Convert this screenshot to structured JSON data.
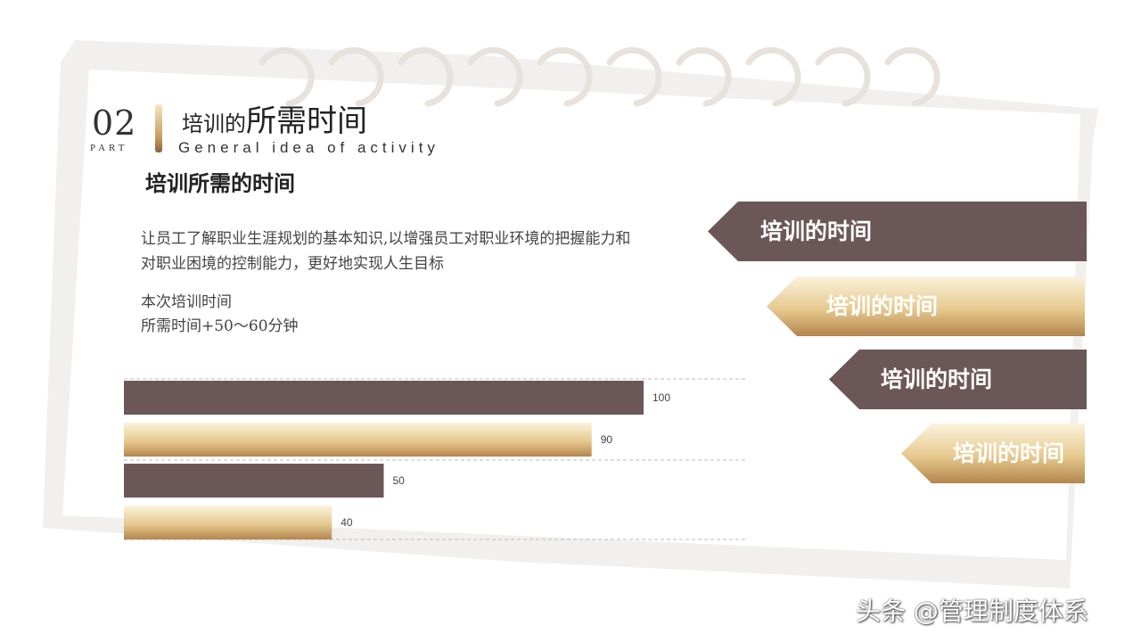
{
  "header": {
    "part_number": "02",
    "part_label": "PART",
    "title_small": "培训的",
    "title_large": "所需时间",
    "subtitle": "General idea of activity"
  },
  "content": {
    "section_title": "培训所需的时间",
    "paragraph": "让员工了解职业生涯规划的基本知识,以增强员工对职业环境的把握能力和对职业困境的控制能力，更好地实现人生目标",
    "time_label": "本次培训时间",
    "time_value": "所需时间+50～60分钟"
  },
  "tags": [
    {
      "label": "培训的时间",
      "style": "dark"
    },
    {
      "label": "培训的时间",
      "style": "gold"
    },
    {
      "label": "培训的时间",
      "style": "dark"
    },
    {
      "label": "培训的时间",
      "style": "gold"
    }
  ],
  "colors": {
    "dark": "#6c5758",
    "gold_light": "#fbf3dd",
    "gold_mid": "#e6c98e",
    "gold_dark": "#b4854f",
    "ring": "#e8e2dc"
  },
  "chart_data": {
    "type": "bar",
    "orientation": "horizontal",
    "values": [
      100,
      90,
      50,
      40
    ],
    "bar_styles": [
      "dark",
      "gold",
      "dark",
      "gold"
    ],
    "xlim": [
      0,
      120
    ],
    "grid": "dashed horizontal",
    "data_labels": true
  },
  "watermark": "头条 @管理制度体系"
}
